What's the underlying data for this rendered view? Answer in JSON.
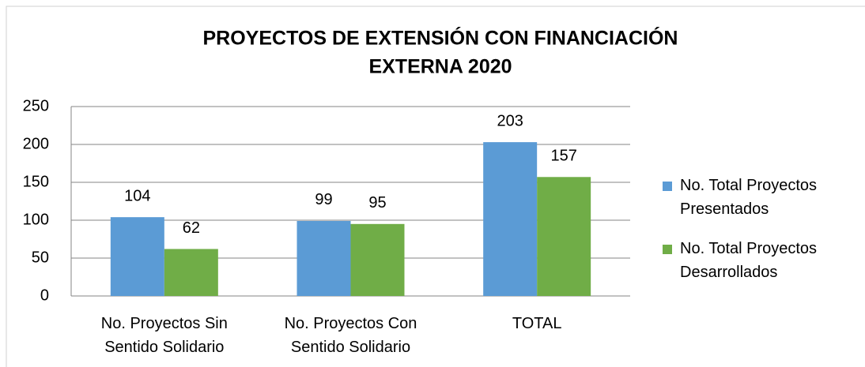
{
  "chart_data": {
    "type": "bar",
    "title": [
      "PROYECTOS DE EXTENSIÓN CON FINANCIACIÓN",
      "EXTERNA 2020"
    ],
    "categories": [
      "No. Proyectos Sin Sentido Solidario",
      "No. Proyectos Con Sentido Solidario",
      "TOTAL"
    ],
    "series": [
      {
        "name": "No. Total Proyectos Presentados",
        "color": "#5b9bd5",
        "values": [
          104,
          99,
          203
        ]
      },
      {
        "name": "No. Total Proyectos Desarrollados",
        "color": "#70ad47",
        "values": [
          62,
          95,
          157
        ]
      }
    ],
    "ylim": [
      0,
      250
    ],
    "yticks": [
      0,
      50,
      100,
      150,
      200,
      250
    ],
    "grid": true,
    "legend": "right"
  }
}
